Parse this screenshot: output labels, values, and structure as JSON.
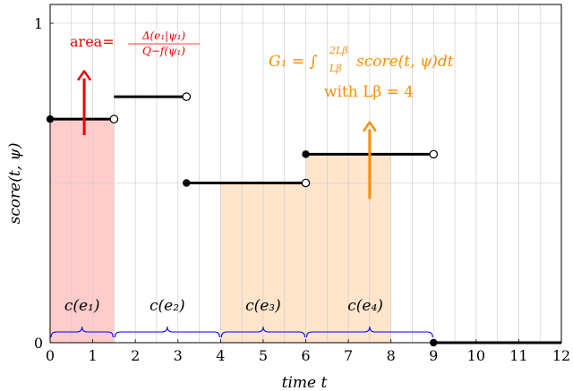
{
  "chart_data": {
    "type": "line",
    "title": "",
    "xlabel": "time t",
    "ylabel": "score(t, ψ)",
    "xlim": [
      0,
      12
    ],
    "ylim": [
      0,
      1
    ],
    "x_ticks": [
      "0",
      "1",
      "2",
      "3",
      "4",
      "5",
      "6",
      "7",
      "8",
      "9",
      "10",
      "11",
      "12"
    ],
    "y_ticks": [
      "0",
      "1"
    ],
    "grid": true,
    "minor_grid_x": 0.5,
    "segments": [
      {
        "x": [
          0,
          1.5
        ],
        "y": 0.7,
        "start": "filled",
        "end": "open"
      },
      {
        "x": [
          1.5,
          3.2
        ],
        "y": 0.77,
        "start": "none",
        "end": "open"
      },
      {
        "x": [
          3.2,
          6.0
        ],
        "y": 0.5,
        "start": "filled",
        "end": "open"
      },
      {
        "x": [
          6.0,
          9.0
        ],
        "y": 0.59,
        "start": "filled",
        "end": "open"
      },
      {
        "x": [
          9.0,
          12.0
        ],
        "y": 0.0,
        "start": "filled",
        "end": "none"
      }
    ],
    "shaded_regions": [
      {
        "x": [
          0,
          1.5
        ],
        "y_top": 0.7,
        "color": "#ffcccc"
      },
      {
        "x": [
          4.0,
          6.0
        ],
        "y_top": 0.5,
        "color": "#ffe5cc"
      },
      {
        "x": [
          6.0,
          8.0
        ],
        "y_top": 0.59,
        "color": "#ffe5cc"
      }
    ],
    "braces": [
      {
        "x": [
          0,
          1.5
        ],
        "label": "c(e₁)"
      },
      {
        "x": [
          1.5,
          4.0
        ],
        "label": "c(e₂)"
      },
      {
        "x": [
          4.0,
          6.0
        ],
        "label": "c(e₃)"
      },
      {
        "x": [
          6.0,
          9.0
        ],
        "label": "c(e₄)"
      }
    ],
    "arrows": [
      {
        "x": 0.8,
        "y": [
          0.65,
          0.85
        ],
        "color": "#ee0000"
      },
      {
        "x": 7.5,
        "y": [
          0.45,
          0.69
        ],
        "color": "#ff8c00"
      }
    ],
    "annotations": {
      "area": {
        "text": "area=",
        "numerator": "Δ(e₁|ψ₁)",
        "denominator": "Q−f(ψ₁)",
        "color": "#ee0000"
      },
      "g1_line1": {
        "text": "G₁ = ∫",
        "sup": "2Lβ",
        "sub": "Lβ",
        "rest": " score(t, ψ)dt",
        "color": "#ff8c00"
      },
      "g1_line2": {
        "text": "with Lβ = 4",
        "color": "#ff8c00"
      }
    },
    "colors": {
      "line": "#000000",
      "brace": "#0000ff",
      "grid": "#c8c8c8"
    }
  }
}
